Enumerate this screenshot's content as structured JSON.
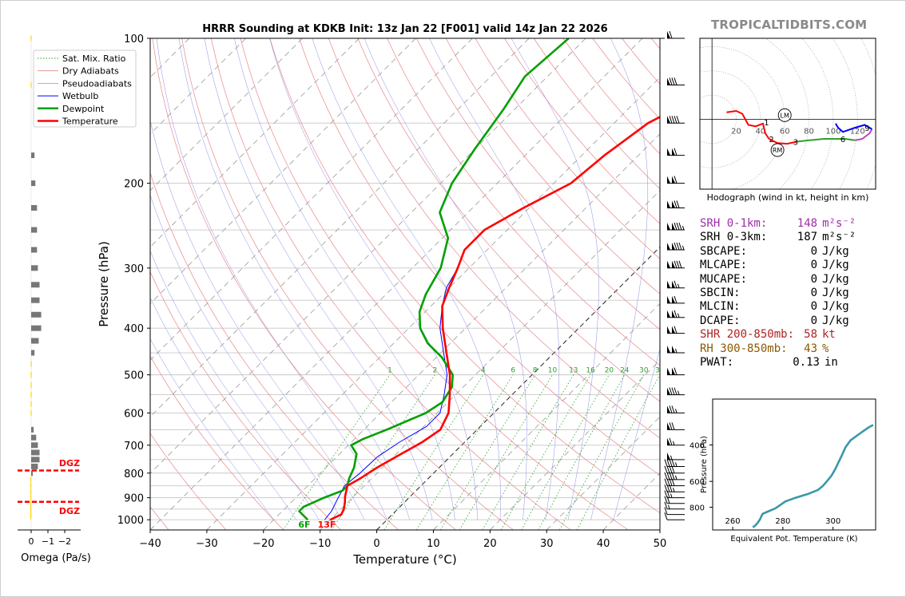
{
  "brand": "TROPICALTIDBITS.COM",
  "chart_data": [
    {
      "type": "skew-t",
      "title": "HRRR Sounding at KDKB Init: 13z Jan 22 [F001] valid 14z Jan 22 2026",
      "xlabel": "Temperature (°C)",
      "ylabel": "Pressure (hPa)",
      "xlim": [
        -40,
        50
      ],
      "ylim": [
        1050,
        100
      ],
      "y_scale": "log",
      "x_ticks": [
        "−40",
        "−30",
        "−20",
        "−10",
        "0",
        "10",
        "20",
        "30",
        "40",
        "50"
      ],
      "y_ticks": [
        "100",
        "200",
        "300",
        "400",
        "500",
        "600",
        "700",
        "800",
        "900",
        "1000"
      ],
      "legend": {
        "placement": "top-left",
        "entries": [
          {
            "label": "Sat. Mix. Ratio",
            "color": "#2ca02c",
            "style": "dotted"
          },
          {
            "label": "Dry Adiabats",
            "color": "#e8878a",
            "style": "solid"
          },
          {
            "label": "Pseudoadiabats",
            "color": "#aaaaaa",
            "style": "solid"
          },
          {
            "label": "Wetbulb",
            "color": "#0000ff",
            "style": "solid"
          },
          {
            "label": "Dewpoint",
            "color": "#00a000",
            "style": "solid"
          },
          {
            "label": "Temperature",
            "color": "#ff0000",
            "style": "solid"
          }
        ]
      },
      "mixing_ratio_labels": [
        "1",
        "2",
        "4",
        "6",
        "8",
        "10",
        "13",
        "16",
        "20",
        "24",
        "30",
        "36"
      ],
      "surface_labels": {
        "dewpoint": "6F",
        "temperature": "13F"
      },
      "series": [
        {
          "name": "Temperature",
          "color": "#ff0000",
          "points": [
            [
              -10,
              1000
            ],
            [
              -9,
              975
            ],
            [
              -9.5,
              950
            ],
            [
              -10.5,
              920
            ],
            [
              -11.5,
              895
            ],
            [
              -13,
              850
            ],
            [
              -12,
              820
            ],
            [
              -11,
              780
            ],
            [
              -9.5,
              740
            ],
            [
              -7.5,
              690
            ],
            [
              -6.5,
              650
            ],
            [
              -8,
              600
            ],
            [
              -11,
              550
            ],
            [
              -14.5,
              500
            ],
            [
              -19,
              450
            ],
            [
              -24,
              400
            ],
            [
              -28,
              360
            ],
            [
              -30,
              330
            ],
            [
              -32,
              300
            ],
            [
              -34,
              275
            ],
            [
              -34,
              250
            ],
            [
              -31,
              225
            ],
            [
              -27,
              200
            ],
            [
              -26,
              175
            ],
            [
              -24,
              150
            ],
            [
              -19,
              130
            ],
            [
              -15,
              115
            ],
            [
              -13,
              100
            ]
          ]
        },
        {
          "name": "Dewpoint",
          "color": "#00a000",
          "points": [
            [
              -14,
              1000
            ],
            [
              -17,
              960
            ],
            [
              -17,
              940
            ],
            [
              -15,
              900
            ],
            [
              -13,
              870
            ],
            [
              -13,
              850
            ],
            [
              -14,
              820
            ],
            [
              -15,
              780
            ],
            [
              -17,
              730
            ],
            [
              -19.5,
              700
            ],
            [
              -18.5,
              680
            ],
            [
              -16,
              650
            ],
            [
              -12,
              600
            ],
            [
              -11,
              570
            ],
            [
              -12,
              530
            ],
            [
              -14,
              500
            ],
            [
              -19,
              460
            ],
            [
              -24,
              430
            ],
            [
              -28,
              400
            ],
            [
              -31,
              370
            ],
            [
              -33,
              340
            ],
            [
              -35,
              300
            ],
            [
              -39,
              260
            ],
            [
              -45,
              230
            ],
            [
              -48,
              200
            ],
            [
              -50,
              170
            ],
            [
              -52,
              140
            ],
            [
              -54,
              120
            ],
            [
              -53,
              100
            ]
          ]
        },
        {
          "name": "Wetbulb",
          "color": "#0000ff",
          "points": [
            [
              -11,
              1000
            ],
            [
              -11.3,
              960
            ],
            [
              -12.5,
              900
            ],
            [
              -13.5,
              850
            ],
            [
              -13,
              800
            ],
            [
              -12.8,
              740
            ],
            [
              -11.5,
              690
            ],
            [
              -9.5,
              640
            ],
            [
              -9.5,
              600
            ],
            [
              -12,
              550
            ],
            [
              -15,
              500
            ],
            [
              -19.5,
              450
            ],
            [
              -24.5,
              400
            ],
            [
              -28,
              360
            ],
            [
              -30.5,
              330
            ],
            [
              -32,
              300
            ],
            [
              -34,
              275
            ],
            [
              -34,
              250
            ],
            [
              -31,
              225
            ],
            [
              -27,
              200
            ],
            [
              -26,
              175
            ],
            [
              -24,
              150
            ],
            [
              -19,
              130
            ],
            [
              -15,
              115
            ],
            [
              -13,
              100
            ]
          ]
        }
      ],
      "wind_barbs": [
        {
          "p": 1000,
          "spd": 10,
          "dir": 250
        },
        {
          "p": 975,
          "spd": 10,
          "dir": 260
        },
        {
          "p": 950,
          "spd": 15,
          "dir": 265
        },
        {
          "p": 925,
          "spd": 20,
          "dir": 270
        },
        {
          "p": 900,
          "spd": 25,
          "dir": 270
        },
        {
          "p": 875,
          "spd": 35,
          "dir": 275
        },
        {
          "p": 850,
          "spd": 40,
          "dir": 275
        },
        {
          "p": 825,
          "spd": 45,
          "dir": 270
        },
        {
          "p": 800,
          "spd": 40,
          "dir": 265
        },
        {
          "p": 775,
          "spd": 45,
          "dir": 265
        },
        {
          "p": 750,
          "spd": 55,
          "dir": 260
        },
        {
          "p": 700,
          "spd": 65,
          "dir": 255
        },
        {
          "p": 650,
          "spd": 70,
          "dir": 255
        },
        {
          "p": 600,
          "spd": 75,
          "dir": 255
        },
        {
          "p": 550,
          "spd": 85,
          "dir": 255
        },
        {
          "p": 500,
          "spd": 110,
          "dir": 255
        },
        {
          "p": 450,
          "spd": 105,
          "dir": 255
        },
        {
          "p": 410,
          "spd": 110,
          "dir": 255
        },
        {
          "p": 380,
          "spd": 115,
          "dir": 255
        },
        {
          "p": 355,
          "spd": 110,
          "dir": 255
        },
        {
          "p": 330,
          "spd": 115,
          "dir": 255
        },
        {
          "p": 300,
          "spd": 130,
          "dir": 255
        },
        {
          "p": 275,
          "spd": 135,
          "dir": 255
        },
        {
          "p": 250,
          "spd": 135,
          "dir": 255
        },
        {
          "p": 225,
          "spd": 120,
          "dir": 255
        },
        {
          "p": 200,
          "spd": 110,
          "dir": 255
        },
        {
          "p": 175,
          "spd": 110,
          "dir": 255
        },
        {
          "p": 150,
          "spd": 90,
          "dir": 255
        },
        {
          "p": 125,
          "spd": 80,
          "dir": 260
        },
        {
          "p": 100,
          "spd": 60,
          "dir": 260
        }
      ]
    },
    {
      "type": "bar",
      "xlabel": "Omega (Pa/s)",
      "x_ticks": [
        "0",
        "−1",
        "−2"
      ],
      "xlim": [
        0.5,
        -2.5
      ],
      "dgz_label": "DGZ",
      "dgz_pressures": [
        918,
        790
      ],
      "bars": [
        {
          "p": 985,
          "v": 0.05
        },
        {
          "p": 975,
          "v": 0.05
        },
        {
          "p": 950,
          "v": 0.05
        },
        {
          "p": 925,
          "v": 0.05
        },
        {
          "p": 900,
          "v": 0.05
        },
        {
          "p": 875,
          "v": 0.05
        },
        {
          "p": 850,
          "v": 0.05
        },
        {
          "p": 825,
          "v": 0.05
        },
        {
          "p": 800,
          "v": -0.1
        },
        {
          "p": 775,
          "v": -0.4
        },
        {
          "p": 750,
          "v": -0.5
        },
        {
          "p": 725,
          "v": -0.5
        },
        {
          "p": 700,
          "v": -0.4
        },
        {
          "p": 675,
          "v": -0.3
        },
        {
          "p": 650,
          "v": -0.15
        },
        {
          "p": 600,
          "v": 0.03
        },
        {
          "p": 575,
          "v": 0.03
        },
        {
          "p": 550,
          "v": 0.03
        },
        {
          "p": 525,
          "v": 0.03
        },
        {
          "p": 500,
          "v": 0.03
        },
        {
          "p": 475,
          "v": 0.02
        },
        {
          "p": 450,
          "v": -0.2
        },
        {
          "p": 425,
          "v": -0.45
        },
        {
          "p": 400,
          "v": -0.6
        },
        {
          "p": 375,
          "v": -0.6
        },
        {
          "p": 350,
          "v": -0.5
        },
        {
          "p": 325,
          "v": -0.5
        },
        {
          "p": 300,
          "v": -0.4
        },
        {
          "p": 275,
          "v": -0.35
        },
        {
          "p": 250,
          "v": -0.35
        },
        {
          "p": 225,
          "v": -0.35
        },
        {
          "p": 200,
          "v": -0.25
        },
        {
          "p": 175,
          "v": -0.2
        },
        {
          "p": 125,
          "v": 0.03
        },
        {
          "p": 100,
          "v": 0.03
        }
      ]
    },
    {
      "type": "line",
      "caption": "Hodograph (wind in kt, height in km)",
      "x_ticks": [
        "20",
        "40",
        "60",
        "80",
        "100",
        "120"
      ],
      "xlim": [
        -10,
        135
      ],
      "ylim": [
        -50,
        58
      ],
      "height_labels": [
        "1",
        "2",
        "3",
        "6",
        "9"
      ],
      "storm_markers": [
        {
          "label": "LM",
          "u": 60,
          "v": 3
        },
        {
          "label": "RM",
          "u": 54,
          "v": -22
        }
      ],
      "segments": [
        {
          "color": "#ff0000",
          "points": [
            [
              12,
              5
            ],
            [
              20,
              6
            ],
            [
              25,
              4
            ],
            [
              30,
              -4
            ],
            [
              36,
              -5
            ],
            [
              42,
              -3
            ],
            [
              44,
              -10
            ],
            [
              47,
              -14
            ]
          ]
        },
        {
          "color": "#ff0000",
          "points": [
            [
              47,
              -14
            ],
            [
              54,
              -17
            ],
            [
              62,
              -17.5
            ],
            [
              70,
              -16
            ]
          ]
        },
        {
          "color": "#2ca02c",
          "points": [
            [
              70,
              -16
            ],
            [
              80,
              -15
            ],
            [
              92,
              -14
            ],
            [
              110,
              -14
            ],
            [
              118,
              -15
            ]
          ]
        },
        {
          "color": "#c040c0",
          "points": [
            [
              118,
              -15
            ],
            [
              124,
              -14
            ],
            [
              130,
              -10
            ],
            [
              132,
              -7
            ]
          ]
        },
        {
          "color": "#0000ff",
          "points": [
            [
              132,
              -7
            ],
            [
              126,
              -4
            ],
            [
              118,
              -6
            ],
            [
              108,
              -9
            ],
            [
              104,
              -6
            ],
            [
              102,
              -3
            ]
          ]
        }
      ]
    },
    {
      "type": "line",
      "xlabel": "Equivalent Pot. Temperature (K)",
      "ylabel": "Pressure (hPa)",
      "x_ticks": [
        "260",
        "280",
        "300"
      ],
      "y_ticks": [
        "400",
        "600",
        "800"
      ],
      "xlim": [
        252,
        317
      ],
      "ylim": [
        1030,
        240
      ],
      "series": [
        {
          "name": "",
          "color": "#3a98a8",
          "points": [
            [
              268,
              1000
            ],
            [
              269,
              980
            ],
            [
              270,
              950
            ],
            [
              271,
              910
            ],
            [
              271.5,
              880
            ],
            [
              272,
              860
            ],
            [
              274,
              840
            ],
            [
              277,
              810
            ],
            [
              279,
              780
            ],
            [
              281,
              750
            ],
            [
              285,
              720
            ],
            [
              290,
              690
            ],
            [
              294,
              660
            ],
            [
              296,
              630
            ],
            [
              298,
              590
            ],
            [
              299.5,
              560
            ],
            [
              301,
              520
            ],
            [
              302,
              490
            ],
            [
              303.5,
              450
            ],
            [
              305,
              410
            ],
            [
              307,
              380
            ],
            [
              311,
              350
            ],
            [
              314,
              330
            ],
            [
              316,
              320
            ]
          ]
        }
      ]
    }
  ],
  "stats": [
    {
      "label": "SRH 0-1km:",
      "value": "148",
      "unit": "m²s⁻²",
      "color": "#9e2ea8"
    },
    {
      "label": "SRH 0-3km:",
      "value": "187",
      "unit": "m²s⁻²",
      "color": "#000000"
    },
    {
      "label": "SBCAPE:",
      "value": "0",
      "unit": "J/kg",
      "color": "#000000"
    },
    {
      "label": "MLCAPE:",
      "value": "0",
      "unit": "J/kg",
      "color": "#000000"
    },
    {
      "label": "MUCAPE:",
      "value": "0",
      "unit": "J/kg",
      "color": "#000000"
    },
    {
      "label": "SBCIN:",
      "value": "0",
      "unit": "J/kg",
      "color": "#000000"
    },
    {
      "label": "MLCIN:",
      "value": "0",
      "unit": "J/kg",
      "color": "#000000"
    },
    {
      "label": "DCAPE:",
      "value": "0",
      "unit": "J/kg",
      "color": "#000000"
    },
    {
      "label": "SHR 200-850mb:",
      "value": "58",
      "unit": "kt",
      "color": "#b22222"
    },
    {
      "label": "RH 300-850mb:",
      "value": "43",
      "unit": "%",
      "color": "#8b5a00"
    },
    {
      "label": "PWAT:",
      "value": "0.13",
      "unit": "in",
      "color": "#000000"
    }
  ]
}
